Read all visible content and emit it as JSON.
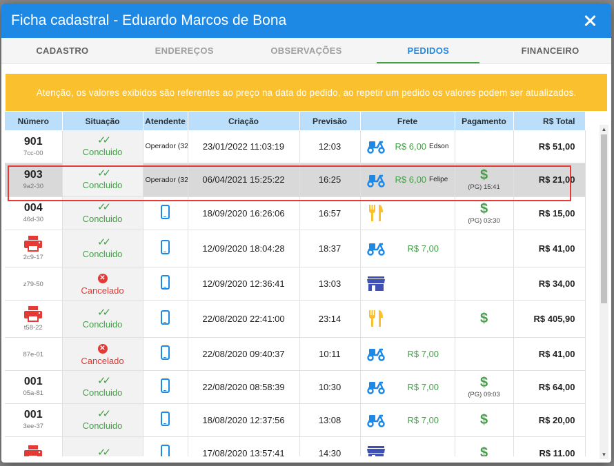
{
  "title": "Ficha cadastral - Eduardo Marcos de Bona",
  "tabs": [
    "CADASTRO",
    "ENDEREÇOS",
    "OBSERVAÇÕES",
    "PEDIDOS",
    "FINANCEIRO"
  ],
  "active_tab": "PEDIDOS",
  "warning": "Atenção, os valores exibidos são referentes ao preço na data do pedido, ao repetir um pedido os valores podem ser atualizados.",
  "columns": [
    "Número",
    "Situação",
    "Atendente",
    "Criação",
    "Previsão",
    "Frete",
    "Pagamento",
    "R$ Total"
  ],
  "rows": [
    {
      "numero": "901",
      "codigo": "7cc-00",
      "situacao": "Concluido",
      "atendente": "Operador (32",
      "criacao": "23/01/2022 11:03:19",
      "previsao": "12:03",
      "frete_valor": "R$ 6,00",
      "frete_nome": "Edson",
      "pagamento": "",
      "total": "R$ 51,00"
    },
    {
      "numero": "903",
      "codigo": "9a2-30",
      "situacao": "Concluido",
      "atendente": "Operador (32",
      "criacao": "06/04/2021 15:25:22",
      "previsao": "16:25",
      "frete_valor": "R$ 6,00",
      "frete_nome": "Felipe",
      "pagamento": "(PG) 15:41",
      "total": "R$ 21,00"
    },
    {
      "numero": "004",
      "codigo": "46d-30",
      "situacao": "Concluido",
      "atendente": "",
      "criacao": "18/09/2020 16:26:06",
      "previsao": "16:57",
      "frete_valor": "",
      "frete_nome": "",
      "pagamento": "(PG) 03:30",
      "total": "R$ 15,00"
    },
    {
      "numero": "",
      "codigo": "2c9-17",
      "situacao": "Concluido",
      "atendente": "",
      "criacao": "12/09/2020 18:04:28",
      "previsao": "18:37",
      "frete_valor": "R$ 7,00",
      "frete_nome": "",
      "pagamento": "",
      "total": "R$ 41,00"
    },
    {
      "numero": "",
      "codigo": "z79-50",
      "situacao": "Cancelado",
      "atendente": "",
      "criacao": "12/09/2020 12:36:41",
      "previsao": "13:03",
      "frete_valor": "",
      "frete_nome": "",
      "pagamento": "",
      "total": "R$ 34,00"
    },
    {
      "numero": "",
      "codigo": "t58-22",
      "situacao": "Concluido",
      "atendente": "",
      "criacao": "22/08/2020 22:41:00",
      "previsao": "23:14",
      "frete_valor": "",
      "frete_nome": "",
      "pagamento": "",
      "total": "R$ 405,90"
    },
    {
      "numero": "",
      "codigo": "87e-01",
      "situacao": "Cancelado",
      "atendente": "",
      "criacao": "22/08/2020 09:40:37",
      "previsao": "10:11",
      "frete_valor": "R$ 7,00",
      "frete_nome": "",
      "pagamento": "",
      "total": "R$ 41,00"
    },
    {
      "numero": "001",
      "codigo": "05a-81",
      "situacao": "Concluido",
      "atendente": "",
      "criacao": "22/08/2020 08:58:39",
      "previsao": "10:30",
      "frete_valor": "R$ 7,00",
      "frete_nome": "",
      "pagamento": "(PG) 09:03",
      "total": "R$ 64,00"
    },
    {
      "numero": "001",
      "codigo": "3ee-37",
      "situacao": "Concluido",
      "atendente": "",
      "criacao": "18/08/2020 12:37:56",
      "previsao": "13:08",
      "frete_valor": "R$ 7,00",
      "frete_nome": "",
      "pagamento": "",
      "total": "R$ 20,00"
    },
    {
      "numero": "",
      "codigo": "",
      "situacao": "",
      "atendente": "",
      "criacao": "17/08/2020 13:57:41",
      "previsao": "14:30",
      "frete_valor": "",
      "frete_nome": "",
      "pagamento": "",
      "total": "R$ 11,00"
    }
  ],
  "icons": {
    "close": "close-icon",
    "check": "double-check-icon",
    "cancel": "x-circle-icon",
    "phone": "smartphone-icon",
    "delivery": "scooter-icon",
    "eat_in": "fork-knife-icon",
    "store": "storefront-icon",
    "printer": "printer-icon",
    "paid": "dollar-icon"
  },
  "colors": {
    "header": "#1e88e5",
    "warning": "#fbc02d",
    "success": "#43a047",
    "danger": "#e53935",
    "table_head": "#bbdefb",
    "eat_in": "#fbc02d",
    "printer": "#e53935"
  }
}
